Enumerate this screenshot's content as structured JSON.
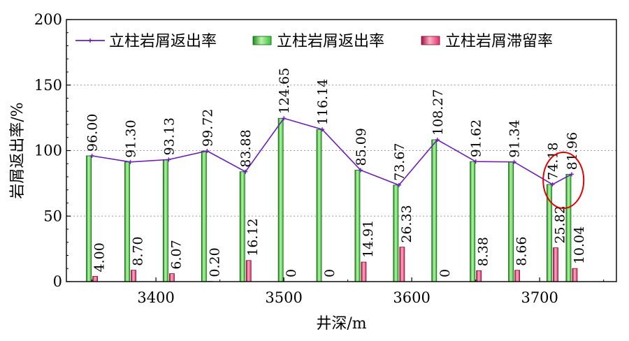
{
  "chart_data": {
    "type": "bar",
    "xlabel": "井深/m",
    "ylabel": "岩屑返出率/%",
    "ylim": [
      0,
      200
    ],
    "xlim": [
      3330,
      3760
    ],
    "yticks": [
      "0",
      "50",
      "100",
      "150",
      "200"
    ],
    "xticks": [
      "3400",
      "3500",
      "3600",
      "3700"
    ],
    "grid": true,
    "legend_position": "top",
    "x": [
      3350,
      3380,
      3410,
      3440,
      3470,
      3500,
      3530,
      3560,
      3590,
      3620,
      3650,
      3680,
      3710,
      3725
    ],
    "series": [
      {
        "name": "立柱岩屑返出率",
        "kind": "line",
        "color": "#6a1fb5",
        "values": [
          96.0,
          91.3,
          93.13,
          99.72,
          83.88,
          124.65,
          116.14,
          85.09,
          73.67,
          108.27,
          91.62,
          91.34,
          74.18,
          81.96
        ],
        "labels": [
          "96.00",
          "91.30",
          "93.13",
          "99.72",
          "83.88",
          "124.65",
          "116.14",
          "85.09",
          "73.67",
          "108.27",
          "91.62",
          "91.34",
          "74.18",
          "81.96"
        ]
      },
      {
        "name": "立柱岩屑返出率",
        "kind": "bar",
        "color": "#3cc03c",
        "values": [
          96.0,
          91.3,
          93.13,
          99.72,
          83.88,
          124.65,
          116.14,
          85.09,
          73.67,
          108.27,
          91.62,
          91.34,
          74.18,
          81.96
        ]
      },
      {
        "name": "立柱岩屑滞留率",
        "kind": "bar",
        "color": "#e0306a",
        "values": [
          4.0,
          8.7,
          6.07,
          0.2,
          16.12,
          0,
          0,
          14.91,
          26.33,
          0,
          8.38,
          8.66,
          25.82,
          10.04
        ],
        "labels": [
          "4.00",
          "8.70",
          "6.07",
          "0.20",
          "16.12",
          "0",
          "0",
          "14.91",
          "26.33",
          "0",
          "8.38",
          "8.66",
          "25.82",
          "10.04"
        ]
      }
    ],
    "annotation": {
      "shape": "ellipse",
      "color": "#e00000",
      "encircles_points": [
        12,
        13
      ]
    }
  }
}
